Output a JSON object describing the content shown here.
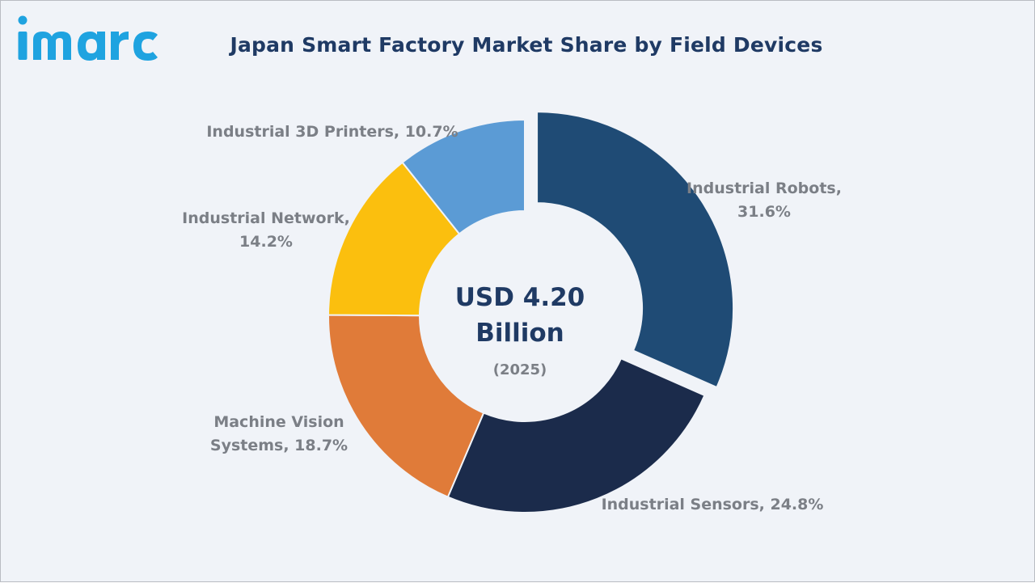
{
  "brand": {
    "logo_text": "imarc",
    "color": "#1fa3e0"
  },
  "title": "Japan Smart Factory Market Share by Field Devices",
  "chart_data": {
    "type": "donut",
    "title": "Japan Smart Factory Market Share by Field Devices",
    "center": {
      "value_line1": "USD 4.20",
      "value_line2": "Billion",
      "year": "(2025)"
    },
    "unit": "%",
    "segments": [
      {
        "name": "Industrial Robots",
        "value": 31.6,
        "color": "#1f4b75",
        "exploded": true,
        "label_lines": [
          "Industrial Robots,",
          "31.6%"
        ]
      },
      {
        "name": "Industrial Sensors",
        "value": 24.8,
        "color": "#1b2b4b",
        "exploded": false,
        "label_lines": [
          "Industrial Sensors, 24.8%"
        ]
      },
      {
        "name": "Machine Vision Systems",
        "value": 18.7,
        "color": "#e07b39",
        "exploded": false,
        "label_lines": [
          "Machine Vision",
          "Systems, 18.7%"
        ]
      },
      {
        "name": "Industrial Network",
        "value": 14.2,
        "color": "#fbbf0e",
        "exploded": false,
        "label_lines": [
          "Industrial Network,",
          "14.2%"
        ]
      },
      {
        "name": "Industrial 3D Printers",
        "value": 10.7,
        "color": "#5b9bd5",
        "exploded": false,
        "label_lines": [
          "Industrial 3D Printers, 10.7%"
        ]
      }
    ]
  }
}
